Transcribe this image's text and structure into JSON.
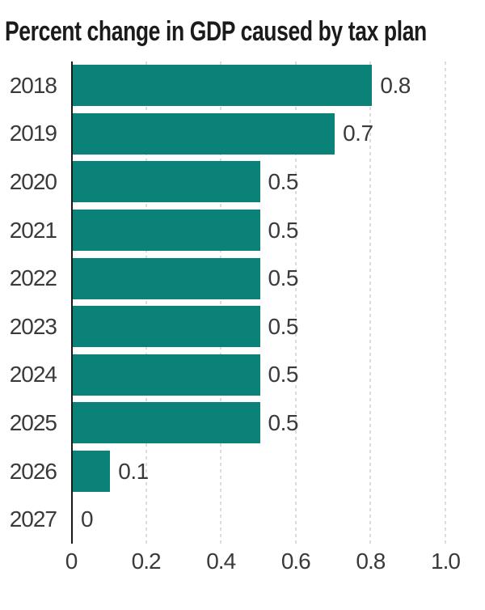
{
  "chart_data": {
    "type": "bar",
    "orientation": "horizontal",
    "title": "Percent change in GDP caused by tax plan",
    "categories": [
      "2018",
      "2019",
      "2020",
      "2021",
      "2022",
      "2023",
      "2024",
      "2025",
      "2026",
      "2027"
    ],
    "values": [
      0.8,
      0.7,
      0.5,
      0.5,
      0.5,
      0.5,
      0.5,
      0.5,
      0.1,
      0
    ],
    "value_labels": [
      "0.8",
      "0.7",
      "0.5",
      "0.5",
      "0.5",
      "0.5",
      "0.5",
      "0.5",
      "0.1",
      "0"
    ],
    "xlabel": "",
    "ylabel": "",
    "xlim": [
      0,
      1.0
    ],
    "x_ticks": [
      "0",
      "0.2",
      "0.4",
      "0.6",
      "0.8",
      "1.0"
    ],
    "x_tick_values": [
      0,
      0.2,
      0.4,
      0.6,
      0.8,
      1.0
    ],
    "grid": "vertical-dashed",
    "legend": "none",
    "colors": {
      "bar": "#0a8278",
      "axis": "#1a1a1a",
      "grid": "#dcdcdc",
      "label": "#3a3a3a",
      "title": "#1b1b1b",
      "background": "#ffffff"
    }
  }
}
